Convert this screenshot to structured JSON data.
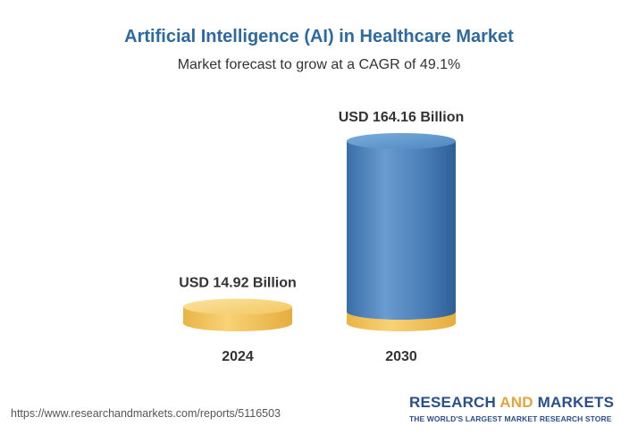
{
  "chart_data": {
    "type": "bar",
    "title": "Artificial Intelligence (AI) in Healthcare Market",
    "subtitle": "Market forecast to grow at a CAGR of 49.1%",
    "categories": [
      "2024",
      "2030"
    ],
    "values": [
      14.92,
      164.16
    ],
    "value_labels": [
      "USD 14.92 Billion",
      "USD 164.16 Billion"
    ],
    "unit": "USD Billion",
    "grid": false,
    "legend": "none"
  },
  "footer": {
    "url": "https://www.researchandmarkets.com/reports/5116503",
    "brand_part1": "RESEARCH ",
    "brand_accent": "AND",
    "brand_part2": " MARKETS",
    "tagline": "THE WORLD'S LARGEST MARKET RESEARCH STORE"
  },
  "colors": {
    "title": "#2c6aa0",
    "bar_blue": "#4a7fb8",
    "bar_gold": "#f2c55c",
    "brand_blue": "#2b4f8c",
    "brand_accent": "#e8a33c"
  }
}
